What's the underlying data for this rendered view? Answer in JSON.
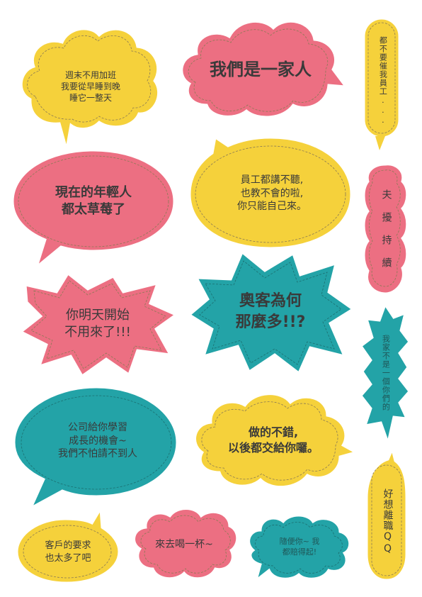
{
  "colors": {
    "yellow": "#f5d13b",
    "pink": "#ec6f82",
    "teal": "#23a3a7",
    "stitch": "#8a7a55",
    "white": "#ffffff"
  },
  "bubbles": [
    {
      "shape": "cloud",
      "color": "yellow",
      "lines": [
        "週末不用加班",
        "我要從早睡到晚",
        "睡它一整天"
      ]
    },
    {
      "shape": "cloud",
      "color": "pink",
      "lines": [
        "我們是一家人"
      ]
    },
    {
      "shape": "pill",
      "color": "yellow",
      "lines": [
        "都不要催我員工..."
      ]
    },
    {
      "shape": "ellipse",
      "color": "pink",
      "lines": [
        "現在的年輕人",
        "都太草莓了"
      ]
    },
    {
      "shape": "ellipse",
      "color": "yellow",
      "lines": [
        "員工都講不聽,",
        "也教不會的啦,",
        "你只能自己來。"
      ]
    },
    {
      "shape": "cloud",
      "color": "pink",
      "lines": [
        "夫 擾 持 續"
      ]
    },
    {
      "shape": "burst",
      "color": "pink",
      "lines": [
        "你明天開始",
        "不用來了!!!"
      ]
    },
    {
      "shape": "burst",
      "color": "teal",
      "lines": [
        "奧客為何",
        "那麼多!!?"
      ]
    },
    {
      "shape": "burst",
      "color": "teal",
      "lines": [
        "我家不是一個你們的"
      ]
    },
    {
      "shape": "ellipse",
      "color": "teal",
      "lines": [
        "公司給你學習",
        "成長的機會~",
        "我們不怕請不到人"
      ]
    },
    {
      "shape": "cloud",
      "color": "yellow",
      "lines": [
        "做的不錯,",
        "以後都交給你囉。"
      ]
    },
    {
      "shape": "pill",
      "color": "yellow",
      "lines": [
        "好想離職QQ"
      ]
    },
    {
      "shape": "ellipse",
      "color": "yellow",
      "lines": [
        "客戶的要求",
        "也太多了吧"
      ]
    },
    {
      "shape": "cloud",
      "color": "pink",
      "lines": [
        "來去喝一杯~"
      ]
    },
    {
      "shape": "cloud",
      "color": "teal",
      "lines": [
        "隨便你~ 我",
        "都賠得起!"
      ]
    }
  ]
}
